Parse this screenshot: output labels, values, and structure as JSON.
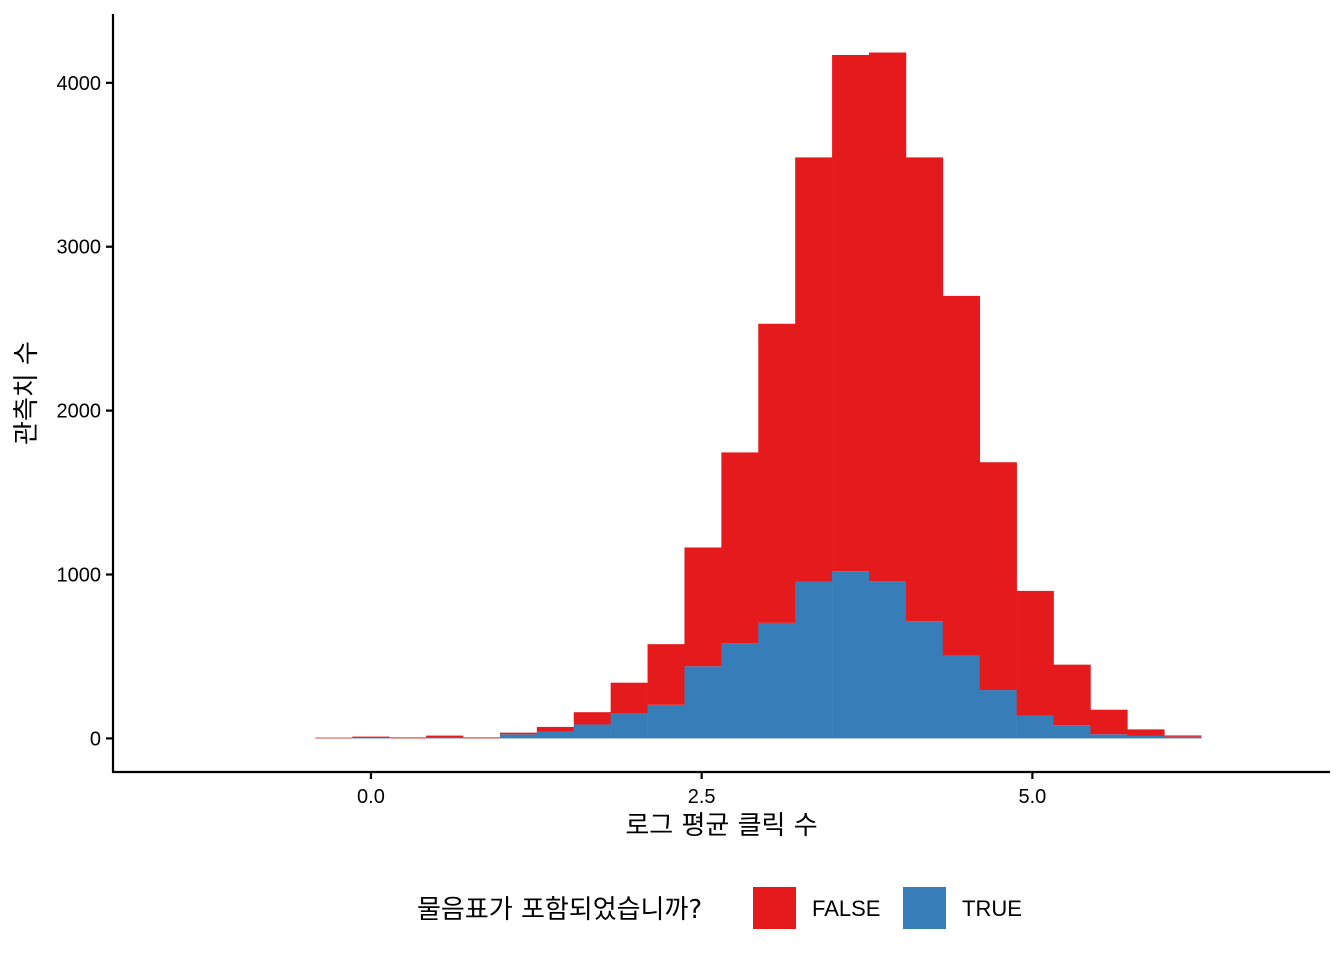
{
  "chart_data": {
    "type": "bar",
    "stacked": true,
    "xlabel": "로그 평균 클릭 수",
    "ylabel": "관측치 수",
    "xlim": [
      -1.95,
      7.25
    ],
    "ylim": [
      -205,
      4420
    ],
    "x_ticks": [
      0.0,
      2.5,
      5.0
    ],
    "x_tick_labels": [
      "0.0",
      "2.5",
      "5.0"
    ],
    "y_ticks": [
      0,
      1000,
      2000,
      3000,
      4000
    ],
    "y_tick_labels": [
      "0",
      "1000",
      "2000",
      "3000",
      "4000"
    ],
    "bin_width": 0.279,
    "bin_starts": [
      -0.42,
      -0.141,
      0.138,
      0.417,
      0.696,
      0.975,
      1.254,
      1.533,
      1.812,
      2.091,
      2.37,
      2.649,
      2.928,
      3.207,
      3.486,
      3.765,
      4.044,
      4.323,
      4.602,
      4.881,
      5.16,
      5.439,
      5.718,
      5.997
    ],
    "grid": false,
    "legend": {
      "title": "물음표가 포함되었습니까?",
      "position": "bottom",
      "entries": [
        {
          "label": "FALSE",
          "color": "#E41A1C"
        },
        {
          "label": "TRUE",
          "color": "#377EB8"
        }
      ]
    },
    "series": [
      {
        "name": "FALSE",
        "color": "#E41A1C",
        "values": [
          5,
          8,
          6,
          12,
          6,
          10,
          30,
          75,
          185,
          370,
          725,
          1165,
          1825,
          2590,
          3150,
          3225,
          2830,
          2195,
          1390,
          760,
          370,
          150,
          40,
          8
        ]
      },
      {
        "name": "TRUE",
        "color": "#377EB8",
        "values": [
          0,
          3,
          0,
          5,
          0,
          25,
          40,
          85,
          155,
          205,
          440,
          580,
          705,
          955,
          1020,
          960,
          715,
          505,
          295,
          140,
          80,
          25,
          15,
          10
        ]
      }
    ]
  }
}
